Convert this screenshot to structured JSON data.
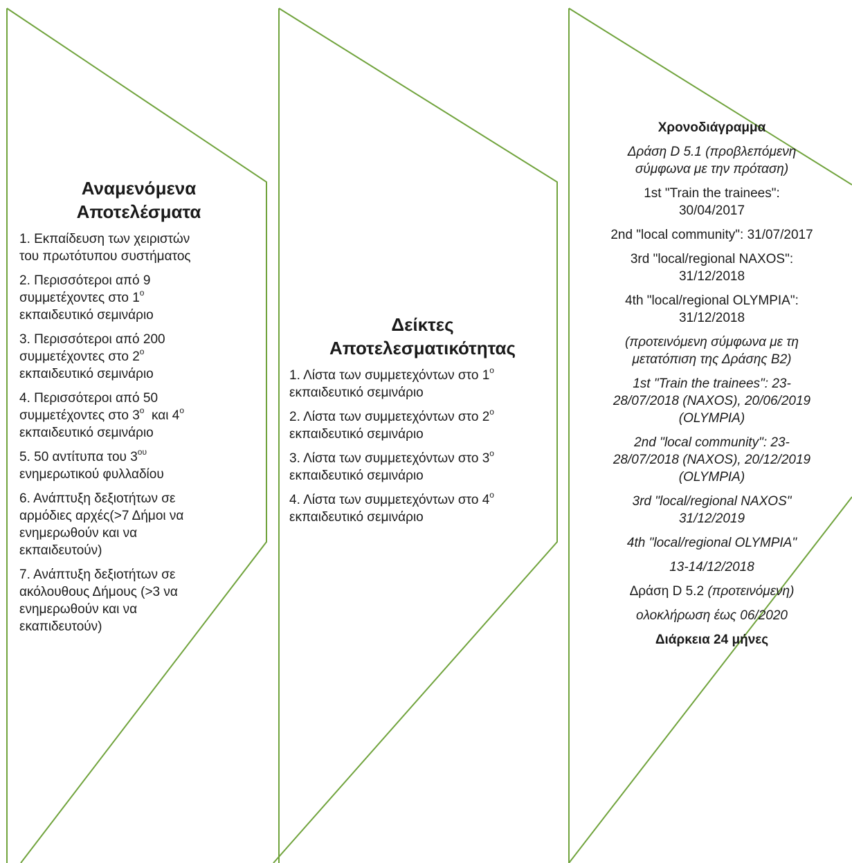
{
  "colors": {
    "stroke": "#70a33c",
    "text": "#1a1a1a"
  },
  "col1": {
    "title": [
      "Αναμενόμενα",
      "Αποτελέσματα"
    ],
    "items": [
      {
        "lines": [
          "1. Εκπαίδευση των χειριστών",
          "του πρωτότυπου συστήματος"
        ]
      },
      {
        "lines": [
          "2. Περισσότεροι από 9",
          "συμμετέχοντες στο 1",
          "εκπαιδευτικό σεμινάριο"
        ],
        "sup": {
          "line": 1,
          "text": "ο"
        }
      },
      {
        "lines": [
          "3. Περισσότεροι από 200",
          "συμμετέχοντες στο 2",
          "εκπαιδευτικό σεμινάριο"
        ],
        "sup": {
          "line": 1,
          "text": "ο"
        }
      },
      {
        "lines": [
          "4. Περισσότεροι από 50",
          "συμμετέχοντες στο 3",
          "εκπαιδευτικό σεμινάριο"
        ],
        "sup": {
          "line": 1,
          "text": "ο"
        },
        "after_sup": "  και 4",
        "sup2": "ο"
      },
      {
        "lines": [
          "5. 50 αντίτυπα του 3",
          "ενημερωτικού φυλλαδίου"
        ],
        "sup": {
          "line": 0,
          "text": "ου"
        }
      },
      {
        "lines": [
          "6. Ανάπτυξη δεξιοτήτων σε",
          "αρμόδιες αρχές(>7 Δήμοι να",
          "ενημερωθούν και να",
          "εκπαιδευτούν)"
        ]
      },
      {
        "lines": [
          "7. Ανάπτυξη δεξιοτήτων σε",
          "ακόλουθους Δήμους (>3 να",
          "ενημερωθούν και να",
          "εκαπιδευτούν)"
        ]
      }
    ]
  },
  "col2": {
    "title": [
      "Δείκτες",
      "Αποτελεσματικότητας"
    ],
    "items": [
      {
        "lines": [
          "1. Λίστα των συμμετεχόντων στο 1",
          "εκπαιδευτικό σεμινάριο"
        ],
        "sup": {
          "line": 0,
          "text": "ο"
        }
      },
      {
        "lines": [
          "2. Λίστα των συμμετεχόντων στο 2",
          "εκπαιδευτικό σεμινάριο"
        ],
        "sup": {
          "line": 0,
          "text": "ο"
        }
      },
      {
        "lines": [
          "3. Λίστα των συμμετεχόντων στο 3",
          "εκπαιδευτικό σεμινάριο"
        ],
        "sup": {
          "line": 0,
          "text": "ο"
        }
      },
      {
        "lines": [
          "4. Λίστα των συμμετεχόντων στο 4",
          "εκπαιδευτικό σεμινάριο"
        ],
        "sup": {
          "line": 0,
          "text": "ο"
        }
      }
    ]
  },
  "col3": {
    "lines": [
      {
        "t": "Χρονοδιάγραμμα",
        "style": "bold",
        "gap": true
      },
      {
        "t": "Δράση D 5.1 (προβλεπόμενη",
        "style": "italic"
      },
      {
        "t": "σύμφωνα με την πρόταση)",
        "style": "italic",
        "gap": true
      },
      {
        "t": "1st \"Train the trainees\":"
      },
      {
        "t": "30/04/2017",
        "gap": true
      },
      {
        "t": "2nd \"local community\": 31/07/2017",
        "gap": true
      },
      {
        "t": "3rd \"local/regional NAXOS\":"
      },
      {
        "t": "31/12/2018",
        "gap": true
      },
      {
        "t": "4th \"local/regional OLYMPIA\":"
      },
      {
        "t": "31/12/2018",
        "gap": true
      },
      {
        "t": "(προτεινόμενη σύμφωνα με τη",
        "style": "italic"
      },
      {
        "t": "μετατόπιση της Δράσης Β2)",
        "style": "italic",
        "gap": true
      },
      {
        "t": "1st \"Train the trainees\": 23-",
        "style": "italic"
      },
      {
        "t": "28/07/2018 (NAXOS), 20/06/2019",
        "style": "italic"
      },
      {
        "t": "(OLYMPIA)",
        "style": "italic",
        "gap": true
      },
      {
        "t": "2nd \"local community\": 23-",
        "style": "italic"
      },
      {
        "t": "28/07/2018 (NAXOS), 20/12/2019",
        "style": "italic"
      },
      {
        "t": "(OLYMPIA)",
        "style": "italic",
        "gap": true
      },
      {
        "t": "3rd \"local/regional NAXOS\"",
        "style": "italic"
      },
      {
        "t": "31/12/2019",
        "style": "italic",
        "gap": true
      },
      {
        "t": "4th \"local/regional OLYMPIA\"",
        "style": "italic",
        "gap": true
      },
      {
        "t": "13-14/12/2018",
        "style": "italic",
        "gap": true
      },
      {
        "t": "Δράση D 5.2 ",
        "t2": "(προτεινόμενη)",
        "style2": "italic",
        "gap": true
      },
      {
        "t": "ολοκλήρωση έως 06/2020",
        "style": "italic",
        "gap": true
      },
      {
        "t": "Διάρκεια 24 μήνες",
        "style": "bold"
      }
    ]
  }
}
